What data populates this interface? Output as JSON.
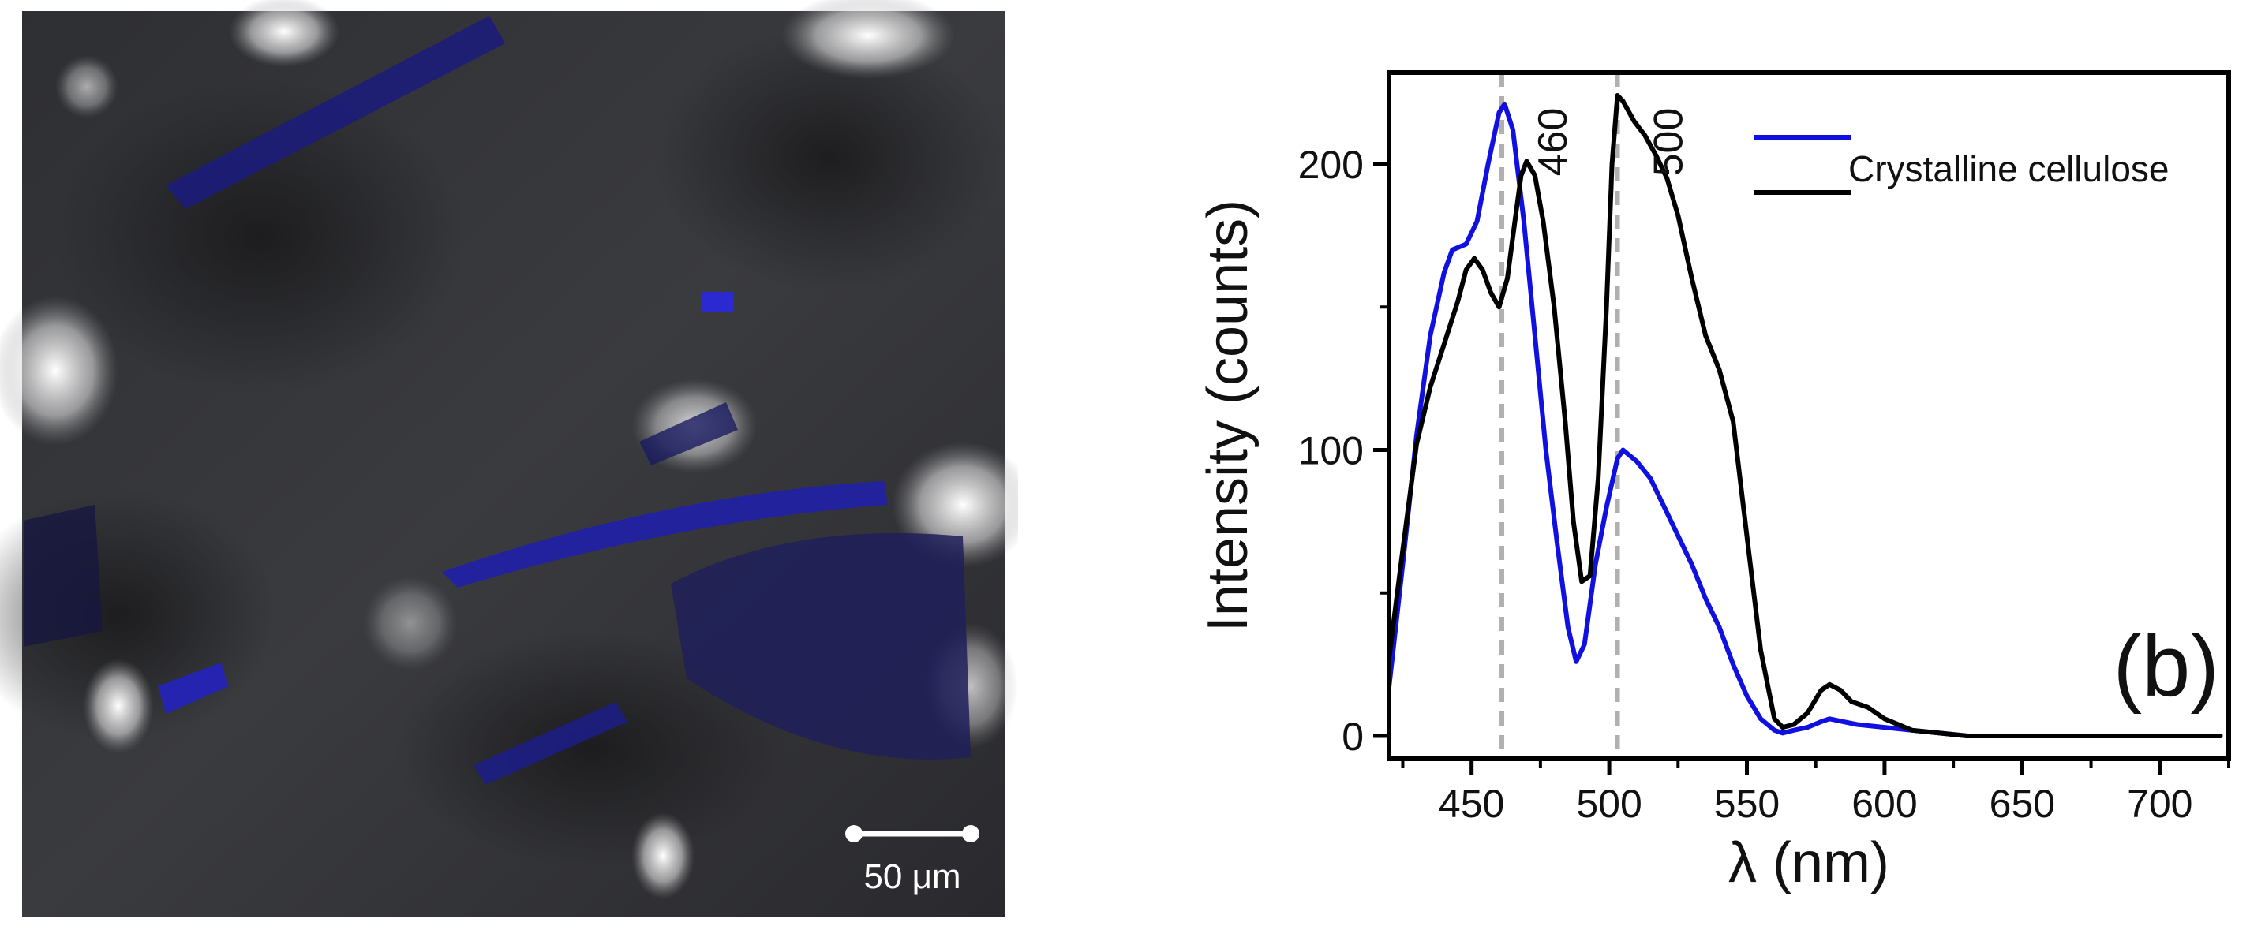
{
  "micrograph": {
    "scale_bar_label": "50 μm"
  },
  "chart_data": {
    "type": "line",
    "title": "",
    "panel_label": "(b)",
    "xlabel": "λ (nm)",
    "ylabel": "Intensity (counts)",
    "xlim": [
      420,
      725
    ],
    "ylim": [
      -8,
      232
    ],
    "xticks": [
      450,
      500,
      550,
      600,
      650,
      700
    ],
    "yticks": [
      0,
      100,
      200
    ],
    "grid": false,
    "legend_position": "top-right",
    "legend_text": "Crystalline cellulose",
    "series": [
      {
        "color": "#1010e0",
        "points": [
          [
            420,
            17
          ],
          [
            425,
            60
          ],
          [
            430,
            105
          ],
          [
            435,
            140
          ],
          [
            440,
            162
          ],
          [
            443,
            170
          ],
          [
            448,
            172
          ],
          [
            452,
            180
          ],
          [
            456,
            200
          ],
          [
            460,
            218
          ],
          [
            462,
            221
          ],
          [
            465,
            212
          ],
          [
            469,
            180
          ],
          [
            473,
            140
          ],
          [
            477,
            100
          ],
          [
            481,
            68
          ],
          [
            485,
            38
          ],
          [
            488,
            26
          ],
          [
            491,
            32
          ],
          [
            495,
            60
          ],
          [
            499,
            80
          ],
          [
            503,
            97
          ],
          [
            505,
            100
          ],
          [
            510,
            96
          ],
          [
            515,
            90
          ],
          [
            520,
            80
          ],
          [
            525,
            70
          ],
          [
            530,
            60
          ],
          [
            535,
            48
          ],
          [
            540,
            38
          ],
          [
            545,
            25
          ],
          [
            550,
            14
          ],
          [
            555,
            6
          ],
          [
            560,
            2
          ],
          [
            563,
            1
          ],
          [
            567,
            2
          ],
          [
            572,
            3
          ],
          [
            577,
            5
          ],
          [
            580,
            6
          ],
          [
            585,
            5
          ],
          [
            590,
            4
          ],
          [
            600,
            3
          ],
          [
            610,
            2
          ],
          [
            620,
            1
          ],
          [
            630,
            0
          ],
          [
            650,
            0
          ],
          [
            700,
            0
          ],
          [
            722,
            0
          ]
        ]
      },
      {
        "color": "#000000",
        "points": [
          [
            420,
            27
          ],
          [
            425,
            65
          ],
          [
            430,
            102
          ],
          [
            435,
            122
          ],
          [
            440,
            137
          ],
          [
            445,
            152
          ],
          [
            448,
            163
          ],
          [
            451,
            167
          ],
          [
            454,
            163
          ],
          [
            457,
            155
          ],
          [
            460,
            150
          ],
          [
            463,
            160
          ],
          [
            466,
            182
          ],
          [
            468,
            196
          ],
          [
            470,
            201
          ],
          [
            473,
            196
          ],
          [
            476,
            180
          ],
          [
            480,
            150
          ],
          [
            484,
            110
          ],
          [
            487,
            75
          ],
          [
            490,
            54
          ],
          [
            493,
            56
          ],
          [
            496,
            90
          ],
          [
            499,
            150
          ],
          [
            501,
            200
          ],
          [
            503,
            224
          ],
          [
            505,
            222
          ],
          [
            509,
            215
          ],
          [
            513,
            210
          ],
          [
            517,
            203
          ],
          [
            521,
            195
          ],
          [
            525,
            182
          ],
          [
            530,
            160
          ],
          [
            535,
            140
          ],
          [
            540,
            128
          ],
          [
            545,
            110
          ],
          [
            550,
            70
          ],
          [
            555,
            30
          ],
          [
            560,
            6
          ],
          [
            563,
            3
          ],
          [
            567,
            4
          ],
          [
            572,
            8
          ],
          [
            577,
            16
          ],
          [
            580,
            18
          ],
          [
            584,
            16
          ],
          [
            588,
            12
          ],
          [
            594,
            10
          ],
          [
            600,
            6
          ],
          [
            610,
            2
          ],
          [
            620,
            1
          ],
          [
            630,
            0
          ],
          [
            650,
            0
          ],
          [
            700,
            0
          ],
          [
            722,
            0
          ]
        ]
      }
    ],
    "annotations": [
      {
        "label": "460",
        "x": 461
      },
      {
        "label": "500",
        "x": 503
      }
    ]
  }
}
